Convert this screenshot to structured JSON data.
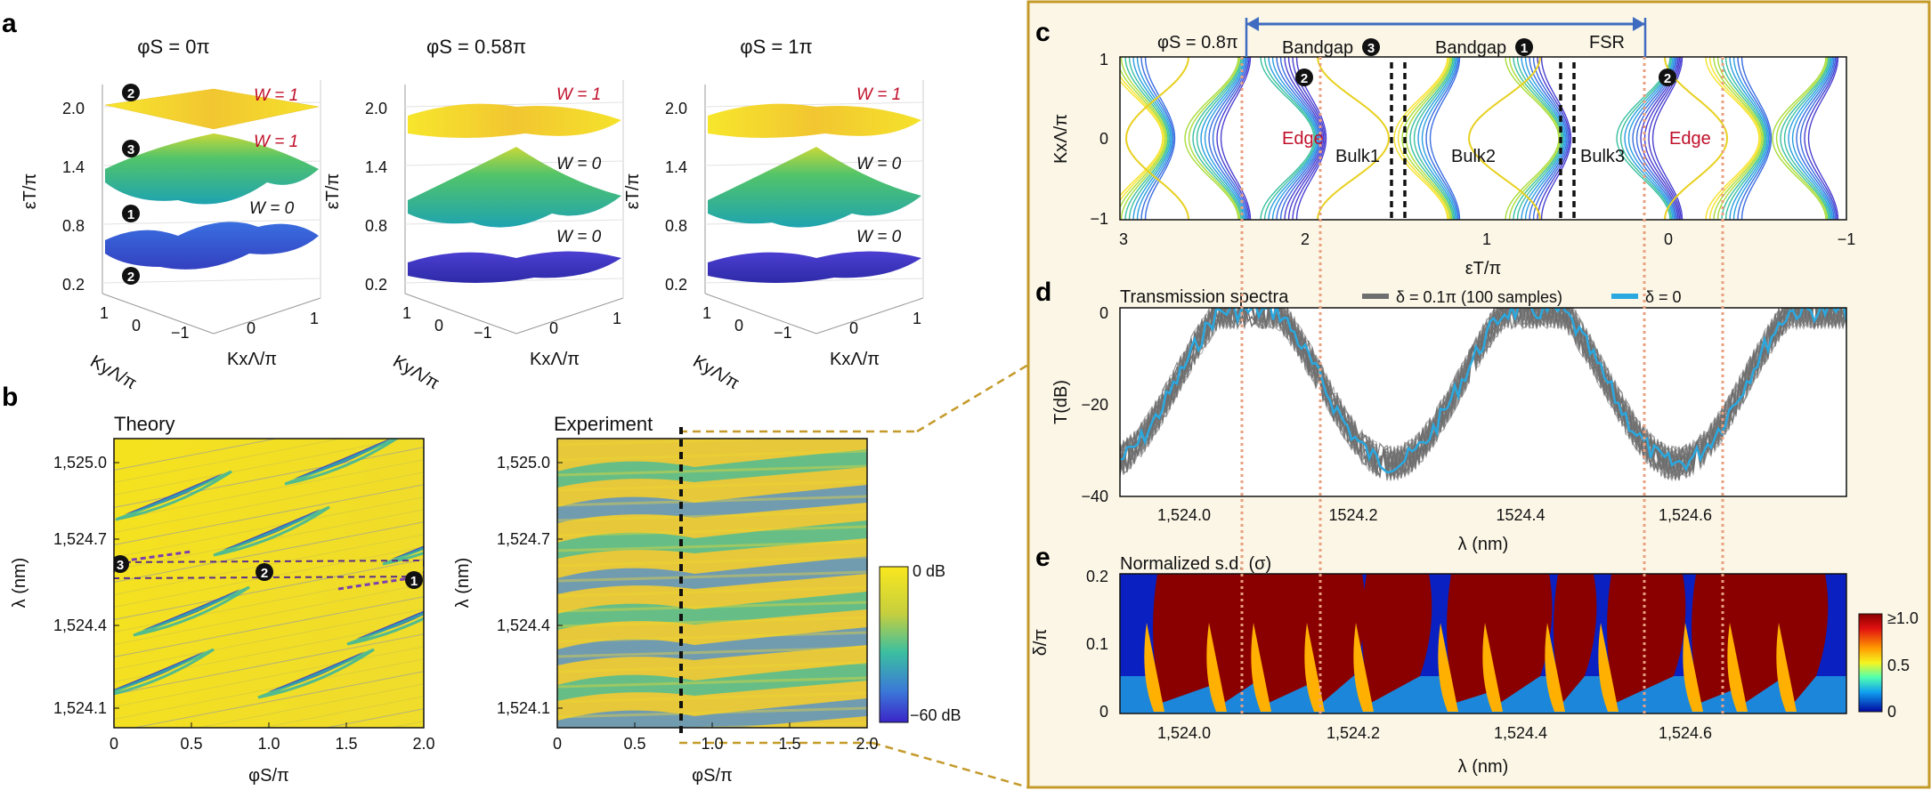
{
  "panel_letters": {
    "a": "a",
    "b": "b",
    "c": "c",
    "d": "d",
    "e": "e"
  },
  "panel_a": {
    "titles": [
      "φS = 0π",
      "φS = 0.58π",
      "φS = 1π"
    ],
    "z_axis_label": "εT/π",
    "z_ticks": [
      "2.0",
      "1.4",
      "0.8",
      "0.2"
    ],
    "ky_label": "KyΛ/π",
    "kx_label": "KxΛ/π",
    "ky_ticks": [
      "1",
      "0",
      "−1"
    ],
    "kx_ticks": [
      "−1",
      "0",
      "1"
    ],
    "winding_first": {
      "w1": "W = 1",
      "w2": "W = 1",
      "w0": "W = 0"
    },
    "winding_other": {
      "w1": "W = 1",
      "w0a": "W = 0",
      "w0b": "W = 0"
    },
    "band_markers": {
      "m2top": "2",
      "m3": "3",
      "m1": "1",
      "m2bot": "2"
    },
    "colors": {
      "top": "#f5e22a",
      "mid": "#28b89a",
      "low": "#3a4fd0",
      "red": "#c0102a"
    }
  },
  "panel_b": {
    "theory_title": "Theory",
    "experiment_title": "Experiment",
    "y_label": "λ (nm)",
    "x_label": "φS/π",
    "y_ticks": [
      "1,525.0",
      "1,524.7",
      "1,524.4",
      "1,524.1"
    ],
    "x_ticks": [
      "0",
      "0.5",
      "1.0",
      "1.5",
      "2.0"
    ],
    "markers": {
      "m3": "3",
      "m2": "2",
      "m1": "1"
    },
    "colorbar_top": "0 dB",
    "colorbar_bottom": "−60 dB"
  },
  "panel_c": {
    "phase_label": "φS = 0.8π",
    "y_label": "KxΛ/π",
    "x_label": "εT/π",
    "y_ticks": [
      "1",
      "0",
      "−1"
    ],
    "x_ticks": [
      "3",
      "2",
      "1",
      "0",
      "−1"
    ],
    "bandgap3": "Bandgap",
    "bandgap3_num": "3",
    "bandgap1": "Bandgap",
    "bandgap1_num": "1",
    "fsr": "FSR",
    "edge": "Edge",
    "bulk1": "Bulk1",
    "bulk2": "Bulk2",
    "bulk3": "Bulk3",
    "marker2": "2"
  },
  "panel_d": {
    "title": "Transmission spectra",
    "legend_gray": "δ = 0.1π (100 samples)",
    "legend_blue": "δ = 0",
    "y_label": "T(dB)",
    "x_label": "λ (nm)",
    "y_ticks": [
      "0",
      "−20",
      "−40"
    ],
    "x_ticks": [
      "1,524.0",
      "1524.2",
      "1524.4",
      "1,524.6"
    ],
    "colors": {
      "gray": "#6e6e6e",
      "blue": "#2aa8e0"
    }
  },
  "panel_e": {
    "title": "Normalized s.d. (σ)",
    "y_label": "δ/π",
    "x_label": "λ (nm)",
    "y_ticks": [
      "0.2",
      "0.1",
      "0"
    ],
    "x_ticks": [
      "1,524.0",
      "1,524.2",
      "1,524.4",
      "1,524.6"
    ],
    "colorbar_ticks": [
      "≥1.0",
      "0.5",
      "0"
    ]
  }
}
